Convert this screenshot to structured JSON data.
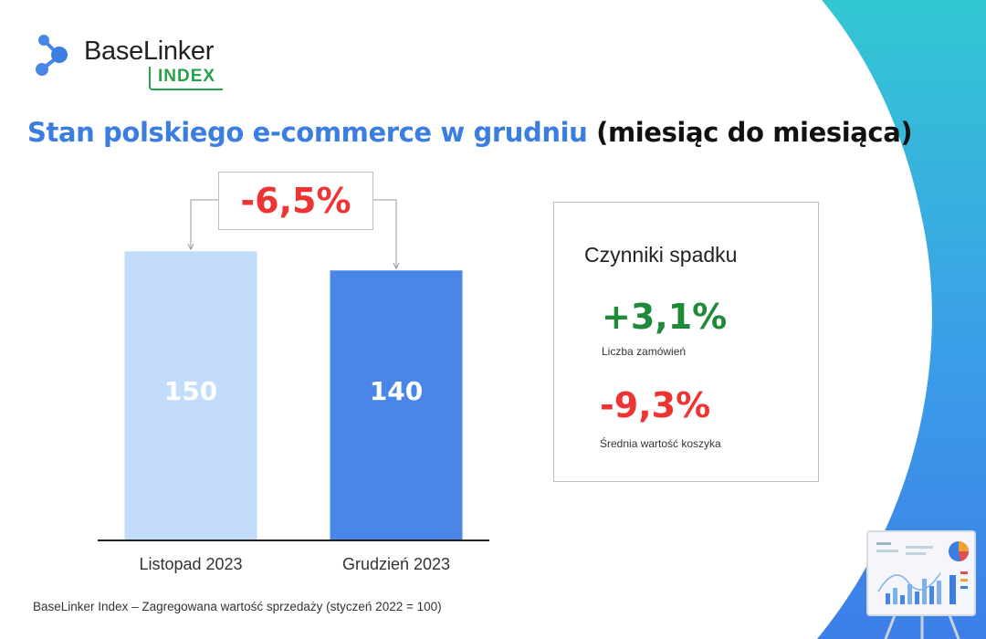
{
  "logo": {
    "name": "BaseLinker",
    "badge": "INDEX"
  },
  "title": {
    "highlight": "Stan polskiego e-commerce w grudniu",
    "rest": "(miesiąc do miesiąca)"
  },
  "colors": {
    "accent": "#3b7de0",
    "bar_light": "#c3dcfb",
    "bar_dark": "#4a86e8",
    "negative": "#ee3333",
    "positive": "#1e8a3a"
  },
  "chart_data": {
    "type": "bar",
    "categories": [
      "Listopad 2023",
      "Grudzień 2023"
    ],
    "values": [
      150,
      140
    ],
    "ylim": [
      0,
      190
    ],
    "change_label": "-6,5%",
    "title": "",
    "xlabel": "",
    "ylabel": ""
  },
  "factors": {
    "title": "Czynniki spadku",
    "items": [
      {
        "value": "+3,1%",
        "label": "Liczba zamówień"
      },
      {
        "value": "-9,3%",
        "label": "Średnia wartość koszyka"
      }
    ]
  },
  "footnote": "BaseLinker Index – Zagregowana wartość sprzedaży (styczeń 2022 = 100)",
  "icons": {
    "logo": "network-nodes-icon",
    "easel": "presentation-board-icon"
  }
}
